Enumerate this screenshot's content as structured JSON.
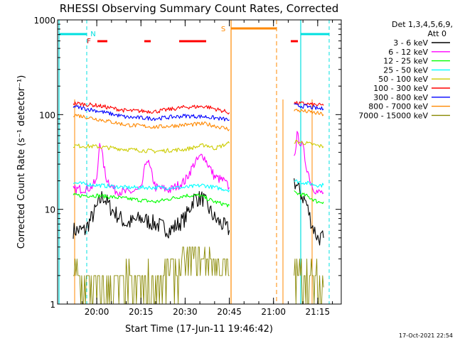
{
  "chart_data": {
    "type": "line",
    "title": "RHESSI Observing Summary Count Rates, Corrected",
    "xlabel": "Start Time (17-Jun-11 19:46:42)",
    "ylabel": "Corrected Count Rate (s⁻¹ detector⁻¹)",
    "y_scale": "log",
    "ylim": [
      1,
      1000
    ],
    "xlim": [
      "19:46:42",
      "21:23:00"
    ],
    "x_ticks": [
      "20:00",
      "20:15",
      "20:30",
      "20:45",
      "21:00",
      "21:15"
    ],
    "y_ticks": [
      "1",
      "10",
      "100",
      "1000"
    ],
    "legend_position": "top-right",
    "legend_header": [
      "Det 1,3,4,5,6,9,",
      "Att 0"
    ],
    "footer_date": "17-Oct-2021 22:54",
    "flag_labels": {
      "N": "N",
      "F": "F",
      "S": "S"
    },
    "series": [
      {
        "name": "3 - 6 keV",
        "color": "#000000",
        "segments": [
          {
            "x": [
              "19:52",
              "19:56",
              "19:59",
              "20:02",
              "20:05",
              "20:10",
              "20:15",
              "20:20",
              "20:25",
              "20:30",
              "20:33",
              "20:36",
              "20:40",
              "20:45"
            ],
            "y": [
              6,
              6,
              9,
              14,
              10,
              7,
              8,
              7,
              6,
              8,
              13,
              13,
              8,
              6
            ]
          },
          {
            "x": [
              "21:07",
              "21:09",
              "21:11",
              "21:13",
              "21:15",
              "21:17"
            ],
            "y": [
              20,
              15,
              12,
              7,
              5,
              5
            ]
          }
        ]
      },
      {
        "name": "6 - 12 keV",
        "color": "#ff00ff",
        "segments": [
          {
            "x": [
              "19:52",
              "19:58",
              "20:00",
              "20:01",
              "20:03",
              "20:06",
              "20:10",
              "20:15",
              "20:17",
              "20:20",
              "20:25",
              "20:30",
              "20:33",
              "20:36",
              "20:40",
              "20:43",
              "20:45"
            ],
            "y": [
              16,
              17,
              20,
              55,
              22,
              16,
              15,
              16,
              35,
              17,
              16,
              20,
              30,
              38,
              22,
              20,
              17
            ]
          },
          {
            "x": [
              "21:07",
              "21:08",
              "21:10",
              "21:11",
              "21:13",
              "21:15",
              "21:17"
            ],
            "y": [
              35,
              60,
              45,
              30,
              18,
              15,
              15
            ]
          }
        ]
      },
      {
        "name": "12 - 25 keV",
        "color": "#00ff00",
        "segments": [
          {
            "x": [
              "19:52",
              "20:00",
              "20:10",
              "20:20",
              "20:30",
              "20:35",
              "20:40",
              "20:45"
            ],
            "y": [
              14,
              14,
              13,
              12,
              14,
              14,
              12,
              11
            ]
          },
          {
            "x": [
              "21:07",
              "21:11",
              "21:15",
              "21:17"
            ],
            "y": [
              15,
              14,
              12,
              12
            ]
          }
        ]
      },
      {
        "name": "25 - 50 keV",
        "color": "#00ffff",
        "segments": [
          {
            "x": [
              "19:52",
              "20:00",
              "20:10",
              "20:20",
              "20:30",
              "20:36",
              "20:40",
              "20:45"
            ],
            "y": [
              19,
              18,
              17,
              17,
              17,
              18,
              17,
              16
            ]
          },
          {
            "x": [
              "21:07",
              "21:11",
              "21:15",
              "21:17"
            ],
            "y": [
              20,
              19,
              18,
              18
            ]
          }
        ]
      },
      {
        "name": "50 - 100 keV",
        "color": "#cccc00",
        "segments": [
          {
            "x": [
              "19:52",
              "20:00",
              "20:10",
              "20:20",
              "20:30",
              "20:37",
              "20:40",
              "20:45"
            ],
            "y": [
              47,
              46,
              43,
              41,
              43,
              48,
              44,
              50
            ]
          },
          {
            "x": [
              "21:07",
              "21:11",
              "21:15",
              "21:17"
            ],
            "y": [
              52,
              50,
              47,
              46
            ]
          }
        ]
      },
      {
        "name": "100 - 300 keV",
        "color": "#ff0000",
        "segments": [
          {
            "x": [
              "19:52",
              "20:00",
              "20:10",
              "20:20",
              "20:30",
              "20:37",
              "20:45"
            ],
            "y": [
              132,
              125,
              110,
              108,
              120,
              122,
              105
            ]
          },
          {
            "x": [
              "21:07",
              "21:11",
              "21:15",
              "21:17"
            ],
            "y": [
              132,
              130,
              126,
              125
            ]
          }
        ]
      },
      {
        "name": "300 - 800 keV",
        "color": "#0000ff",
        "segments": [
          {
            "x": [
              "19:52",
              "20:00",
              "20:10",
              "20:20",
              "20:30",
              "20:37",
              "20:45"
            ],
            "y": [
              122,
              110,
              94,
              91,
              97,
              95,
              88
            ]
          },
          {
            "x": [
              "21:07",
              "21:11",
              "21:15",
              "21:17"
            ],
            "y": [
              125,
              122,
              116,
              115
            ]
          }
        ]
      },
      {
        "name": "800 - 7000 keV",
        "color": "#ff8800",
        "segments": [
          {
            "x": [
              "19:52",
              "20:00",
              "20:10",
              "20:20",
              "20:30",
              "20:37",
              "20:45"
            ],
            "y": [
              100,
              90,
              78,
              74,
              78,
              80,
              70
            ]
          },
          {
            "x": [
              "21:07",
              "21:11",
              "21:15",
              "21:17"
            ],
            "y": [
              112,
              108,
              103,
              100
            ]
          }
        ]
      },
      {
        "name": "7000 - 15000 keV",
        "color": "#888800",
        "segments": [
          {
            "x": [
              "19:52",
              "20:00",
              "20:10",
              "20:20",
              "20:27",
              "20:32",
              "20:37",
              "20:42",
              "20:45"
            ],
            "y": [
              2,
              1.5,
              1.5,
              1.5,
              2.5,
              3,
              3,
              2.5,
              2
            ]
          },
          {
            "x": [
              "21:07",
              "21:11",
              "21:15",
              "21:17"
            ],
            "y": [
              2,
              2,
              1.5,
              1.5
            ]
          }
        ]
      }
    ]
  }
}
